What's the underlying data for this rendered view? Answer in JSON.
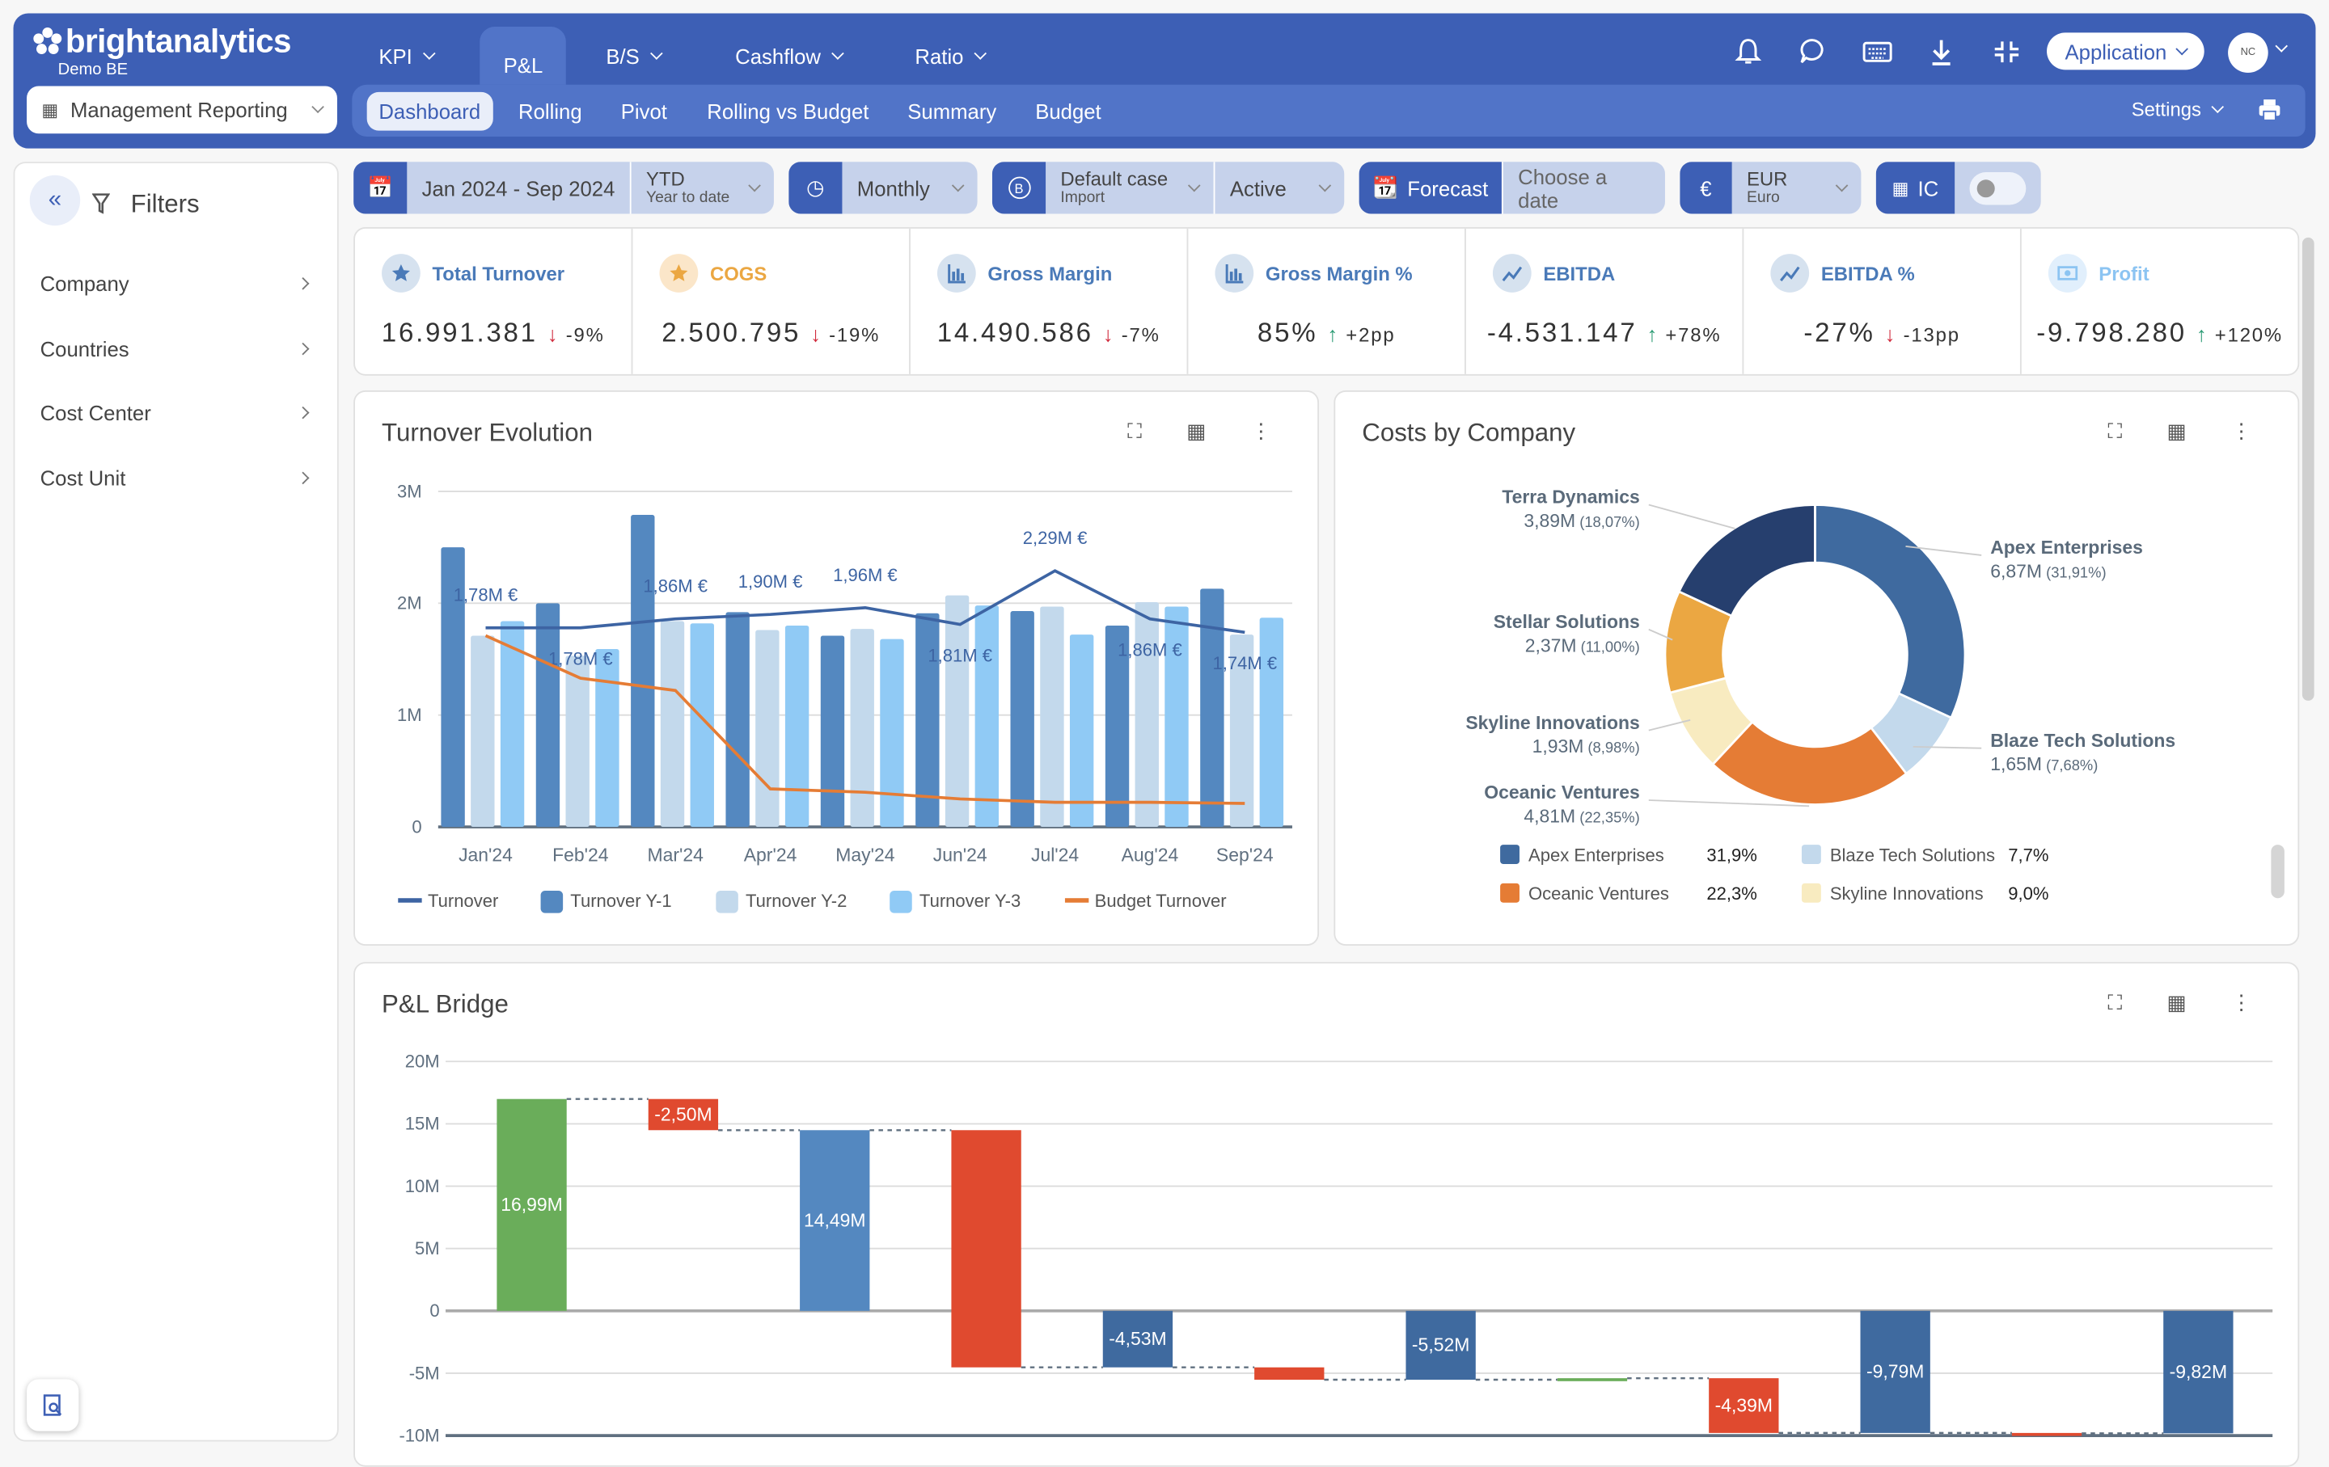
{
  "header": {
    "brand": "brightanalytics",
    "org": "Demo BE",
    "main_tabs": [
      {
        "label": "KPI",
        "dropdown": true
      },
      {
        "label": "P&L",
        "active": true
      },
      {
        "label": "B/S",
        "dropdown": true
      },
      {
        "label": "Cashflow",
        "dropdown": true
      },
      {
        "label": "Ratio",
        "dropdown": true
      }
    ],
    "report_selector": "Management Reporting",
    "sub_tabs": [
      {
        "label": "Dashboard",
        "active": true
      },
      {
        "label": "Rolling"
      },
      {
        "label": "Pivot"
      },
      {
        "label": "Rolling vs Budget"
      },
      {
        "label": "Summary"
      },
      {
        "label": "Budget"
      }
    ],
    "icons": [
      "bell-icon",
      "chat-icon",
      "keyboard-icon",
      "download-icon",
      "compress-icon"
    ],
    "app_button": "Application",
    "avatar": "NC",
    "settings": "Settings"
  },
  "sidebar": {
    "title": "Filters",
    "items": [
      "Company",
      "Countries",
      "Cost Center",
      "Cost Unit"
    ]
  },
  "filters": {
    "period": "Jan 2024 - Sep 2024",
    "period_type": "YTD",
    "period_type_sub": "Year to date",
    "granularity": "Monthly",
    "scenario": "Default case",
    "scenario_sub": "Import",
    "status": "Active",
    "forecast": "Forecast",
    "forecast_date_placeholder": "Choose a date",
    "currency_symbol": "€",
    "currency": "EUR",
    "currency_sub": "Euro",
    "ic": "IC",
    "ic_toggle": false
  },
  "kpis": [
    {
      "label": "Total Turnover",
      "value": "16.991.381",
      "delta": "-9%",
      "trend": "down",
      "icon": "star-icon",
      "color": "#4a7ab8"
    },
    {
      "label": "COGS",
      "value": "2.500.795",
      "delta": "-19%",
      "trend": "down",
      "icon": "star-icon",
      "color": "#eba742"
    },
    {
      "label": "Gross Margin",
      "value": "14.490.586",
      "delta": "-7%",
      "trend": "down",
      "icon": "bar-chart-icon",
      "color": "#4a7ab8"
    },
    {
      "label": "Gross Margin %",
      "value": "85%",
      "delta": "+2pp",
      "trend": "up",
      "icon": "bar-chart-icon",
      "color": "#4a7ab8"
    },
    {
      "label": "EBITDA",
      "value": "-4.531.147",
      "delta": "+78%",
      "trend": "up",
      "icon": "trend-line-icon",
      "color": "#4a7ab8"
    },
    {
      "label": "EBITDA %",
      "value": "-27%",
      "delta": "-13pp",
      "trend": "down",
      "icon": "trend-line-icon",
      "color": "#4a7ab8"
    },
    {
      "label": "Profit",
      "value": "-9.798.280",
      "delta": "+120%",
      "trend": "up",
      "icon": "money-icon",
      "color": "#8cc4f2"
    }
  ],
  "chart_data": [
    {
      "type": "bar",
      "title": "Turnover Evolution",
      "categories": [
        "Jan'24",
        "Feb'24",
        "Mar'24",
        "Apr'24",
        "May'24",
        "Jun'24",
        "Jul'24",
        "Aug'24",
        "Sep'24"
      ],
      "yticks": [
        "0",
        "1M",
        "2M",
        "3M"
      ],
      "ylim": [
        0,
        3000000
      ],
      "grid": true,
      "legend": "bottom",
      "series": [
        {
          "name": "Turnover",
          "kind": "line",
          "color": "#3d64a3",
          "values": [
            1780000,
            1780000,
            1860000,
            1900000,
            1960000,
            1810000,
            2290000,
            1860000,
            1740000
          ],
          "labels": [
            "1,78M €",
            "1,78M €",
            "1,86M €",
            "1,90M €",
            "1,96M €",
            "1,81M €",
            "2,29M €",
            "1,86M €",
            "1,74M €"
          ]
        },
        {
          "name": "Turnover Y-1",
          "kind": "bar",
          "color": "#5488c0",
          "values": [
            2500000,
            2000000,
            2790000,
            1920000,
            1710000,
            1910000,
            1930000,
            1800000,
            2130000
          ]
        },
        {
          "name": "Turnover Y-2",
          "kind": "bar",
          "color": "#c3d9ec",
          "values": [
            1710000,
            1530000,
            1840000,
            1760000,
            1770000,
            2070000,
            1970000,
            2010000,
            1720000
          ]
        },
        {
          "name": "Turnover Y-3",
          "kind": "bar",
          "color": "#90caf5",
          "values": [
            1840000,
            1590000,
            1820000,
            1800000,
            1680000,
            1980000,
            1720000,
            1970000,
            1870000
          ]
        },
        {
          "name": "Budget Turnover",
          "kind": "line",
          "color": "#e57c35",
          "values": [
            1710000,
            1330000,
            1220000,
            340000,
            310000,
            250000,
            220000,
            220000,
            210000
          ]
        }
      ]
    },
    {
      "type": "pie",
      "title": "Costs by Company",
      "donut": true,
      "slices": [
        {
          "name": "Apex Enterprises",
          "value": "6,87M",
          "pct": "31,91%",
          "legend_pct": "31,9%",
          "share": 31.91,
          "color": "#3f6a9f"
        },
        {
          "name": "Blaze Tech Solutions",
          "value": "1,65M",
          "pct": "7,68%",
          "legend_pct": "7,7%",
          "share": 7.68,
          "color": "#c3d9ec"
        },
        {
          "name": "Oceanic Ventures",
          "value": "4,81M",
          "pct": "22,35%",
          "legend_pct": "22,3%",
          "share": 22.35,
          "color": "#e57c35"
        },
        {
          "name": "Skyline Innovations",
          "value": "1,93M",
          "pct": "8,98%",
          "legend_pct": "9,0%",
          "share": 8.98,
          "color": "#f8ebc0"
        },
        {
          "name": "Stellar Solutions",
          "value": "2,37M",
          "pct": "11,00%",
          "share": 11.0,
          "color": "#eba742"
        },
        {
          "name": "Terra Dynamics",
          "value": "3,89M",
          "pct": "18,07%",
          "share": 18.07,
          "color": "#263f6e"
        }
      ]
    },
    {
      "type": "bar",
      "subtype": "waterfall",
      "title": "P&L Bridge",
      "yticks": [
        "20M",
        "15M",
        "10M",
        "5M",
        "0",
        "-5M",
        "-10M"
      ],
      "ylim": [
        -10000000,
        20000000
      ],
      "grid": true,
      "steps": [
        {
          "kind": "total",
          "value": 16990000,
          "label": "16,99M",
          "color": "#6aad5a"
        },
        {
          "kind": "delta",
          "value": -2500000,
          "label": "-2,50M",
          "color": "#e04a2f"
        },
        {
          "kind": "total",
          "value": 14490000,
          "label": "14,49M",
          "color": "#5488c0"
        },
        {
          "kind": "delta",
          "value": -19020000,
          "label": null,
          "color": "#e04a2f"
        },
        {
          "kind": "total",
          "value": -4530000,
          "label": "-4,53M",
          "color": "#3f6a9f"
        },
        {
          "kind": "delta",
          "value": -990000,
          "label": null,
          "color": "#e04a2f"
        },
        {
          "kind": "total",
          "value": -5520000,
          "label": "-5,52M",
          "color": "#3f6a9f"
        },
        {
          "kind": "delta",
          "value": 120000,
          "label": null,
          "color": "#6aad5a"
        },
        {
          "kind": "delta",
          "value": -4390000,
          "label": "-4,39M",
          "color": "#e04a2f"
        },
        {
          "kind": "total",
          "value": -9790000,
          "label": "-9,79M",
          "color": "#3f6a9f"
        },
        {
          "kind": "delta",
          "value": -30000,
          "label": null,
          "color": "#e04a2f"
        },
        {
          "kind": "total",
          "value": -9820000,
          "label": "-9,82M",
          "color": "#3f6a9f"
        }
      ]
    }
  ]
}
